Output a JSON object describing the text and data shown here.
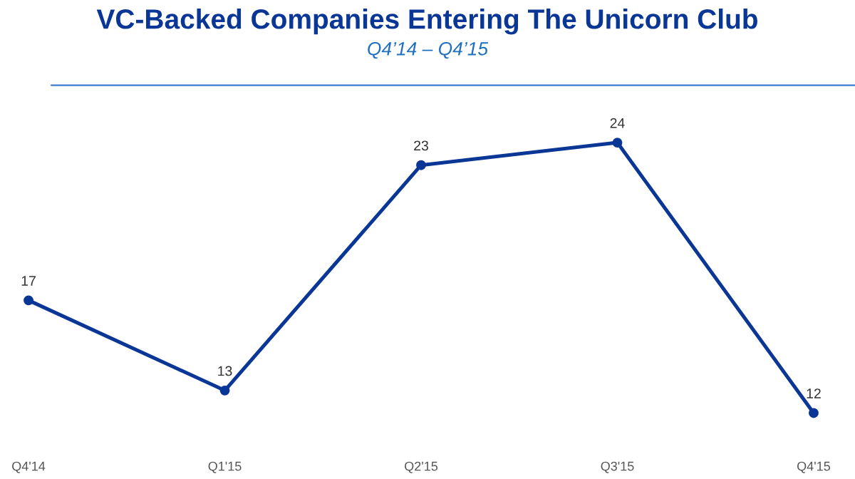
{
  "chart_data": {
    "type": "line",
    "title": "VC-Backed Companies Entering The Unicorn Club",
    "subtitle": "Q4’14 – Q4’15",
    "categories": [
      "Q4'14",
      "Q1'15",
      "Q2'15",
      "Q3'15",
      "Q4'15"
    ],
    "series": [
      {
        "color": "#0a3696",
        "values": [
          17,
          13,
          23,
          24,
          12
        ]
      }
    ],
    "tick_labels": "x",
    "data_labels": true,
    "marker": "circle",
    "line_style": "solid",
    "grid": false,
    "legend": false
  }
}
